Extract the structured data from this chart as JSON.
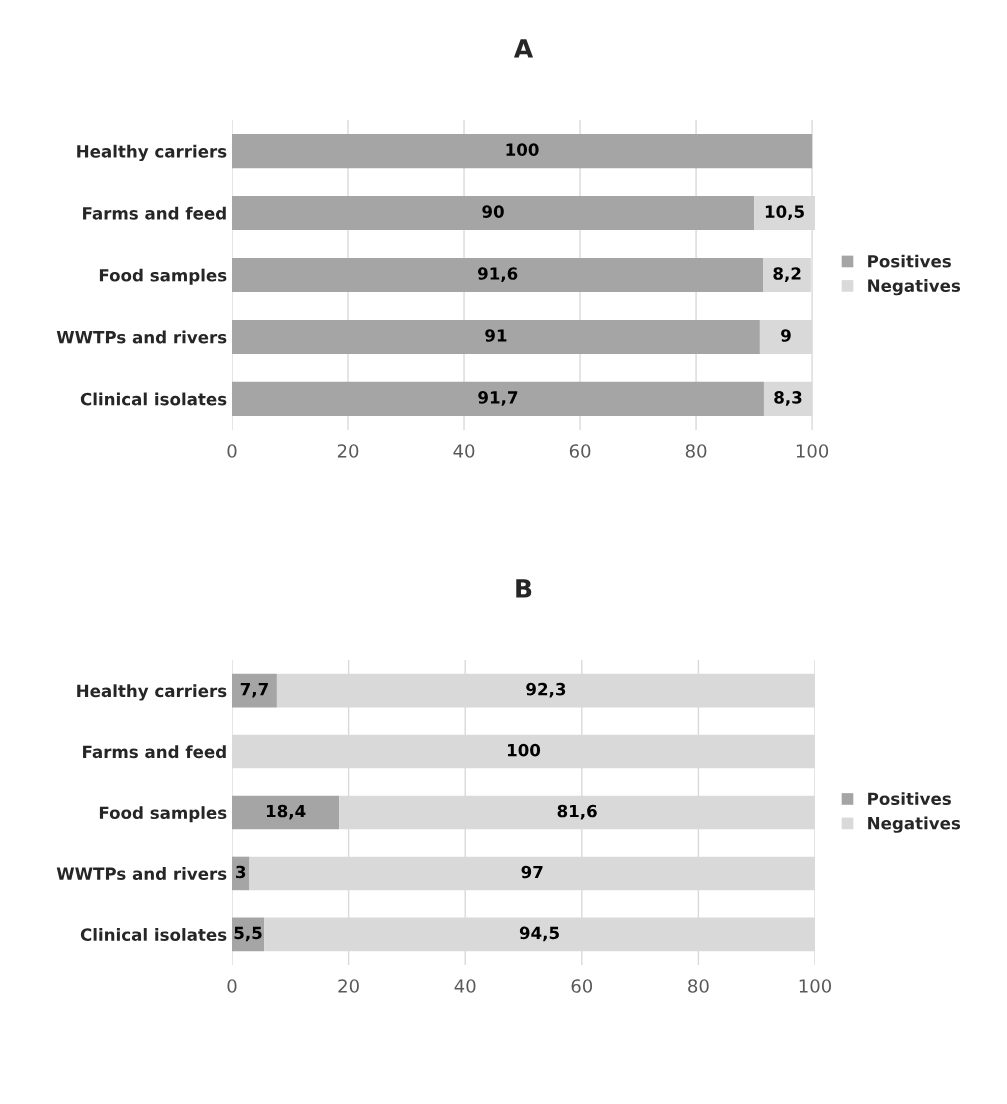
{
  "chart_data": [
    {
      "type": "bar",
      "title": "A",
      "orientation": "horizontal",
      "stacked": true,
      "categories": [
        "Healthy carriers",
        "Farms and feed",
        "Food samples",
        "WWTPs and rivers",
        "Clinical isolates"
      ],
      "series": [
        {
          "name": "Positives",
          "color": "#a5a5a5",
          "values": [
            100,
            90,
            91.6,
            91,
            91.7
          ],
          "value_labels": [
            "100",
            "90",
            "91,6",
            "91",
            "91,7"
          ]
        },
        {
          "name": "Negatives",
          "color": "#d9d9d9",
          "values": [
            0,
            10.5,
            8.2,
            9,
            8.3
          ],
          "value_labels": [
            null,
            "10,5",
            "8,2",
            "9",
            "8,3"
          ]
        }
      ],
      "xlim": [
        0,
        100.5
      ],
      "xticks": [
        0,
        20,
        40,
        60,
        80,
        100
      ],
      "grid": "x",
      "legend": "right"
    },
    {
      "type": "bar",
      "title": "B",
      "orientation": "horizontal",
      "stacked": true,
      "categories": [
        "Healthy carriers",
        "Farms and feed",
        "Food samples",
        "WWTPs and rivers",
        "Clinical isolates"
      ],
      "series": [
        {
          "name": "Positives",
          "color": "#a5a5a5",
          "values": [
            7.7,
            0,
            18.4,
            3,
            5.5
          ],
          "value_labels": [
            "7,7",
            null,
            "18,4",
            "3",
            "5,5"
          ]
        },
        {
          "name": "Negatives",
          "color": "#d9d9d9",
          "values": [
            92.3,
            100,
            81.6,
            97,
            94.5
          ],
          "value_labels": [
            "92,3",
            "100",
            "81,6",
            "97",
            "94,5"
          ]
        }
      ],
      "xlim": [
        0,
        100
      ],
      "xticks": [
        0,
        20,
        40,
        60,
        80,
        100
      ],
      "grid": "x",
      "legend": "right"
    }
  ]
}
